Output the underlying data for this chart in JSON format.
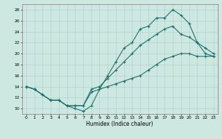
{
  "xlabel": "Humidex (Indice chaleur)",
  "bg_color": "#cce8e0",
  "grid_color": "#aacccc",
  "line_color": "#1a6e6a",
  "xlim": [
    -0.5,
    23.5
  ],
  "ylim": [
    9,
    29
  ],
  "xticks": [
    0,
    1,
    2,
    3,
    4,
    5,
    6,
    7,
    8,
    9,
    10,
    11,
    12,
    13,
    14,
    15,
    16,
    17,
    18,
    19,
    20,
    21,
    22,
    23
  ],
  "yticks": [
    10,
    12,
    14,
    16,
    18,
    20,
    22,
    24,
    26,
    28
  ],
  "line1_x": [
    0,
    1,
    2,
    3,
    4,
    5,
    6,
    7,
    8,
    9,
    10,
    11,
    12,
    13,
    14,
    15,
    16,
    17,
    18,
    19,
    20,
    21,
    22,
    23
  ],
  "line1_y": [
    14,
    13.5,
    12.5,
    11.5,
    11.5,
    10.5,
    10,
    9.5,
    10.5,
    13.5,
    16,
    18.5,
    21,
    22,
    24.5,
    25,
    26.5,
    26.5,
    28,
    27,
    25.5,
    22,
    20,
    19.5
  ],
  "line2_x": [
    0,
    1,
    2,
    3,
    4,
    5,
    6,
    7,
    8,
    9,
    10,
    11,
    12,
    13,
    14,
    15,
    16,
    17,
    18,
    19,
    20,
    21,
    22,
    23
  ],
  "line2_y": [
    14,
    13.5,
    12.5,
    11.5,
    11.5,
    10.5,
    10.5,
    10.5,
    13.5,
    14,
    15.5,
    17,
    18.5,
    20,
    21.5,
    22.5,
    23.5,
    24.5,
    25,
    23.5,
    23,
    22,
    21,
    20
  ],
  "line3_x": [
    0,
    1,
    2,
    3,
    4,
    5,
    6,
    7,
    8,
    9,
    10,
    11,
    12,
    13,
    14,
    15,
    16,
    17,
    18,
    19,
    20,
    21,
    22,
    23
  ],
  "line3_y": [
    14,
    13.5,
    12.5,
    11.5,
    11.5,
    10.5,
    10.5,
    10.5,
    13,
    13.5,
    14,
    14.5,
    15,
    15.5,
    16,
    17,
    18,
    19,
    19.5,
    20,
    20,
    19.5,
    19.5,
    19.5
  ]
}
